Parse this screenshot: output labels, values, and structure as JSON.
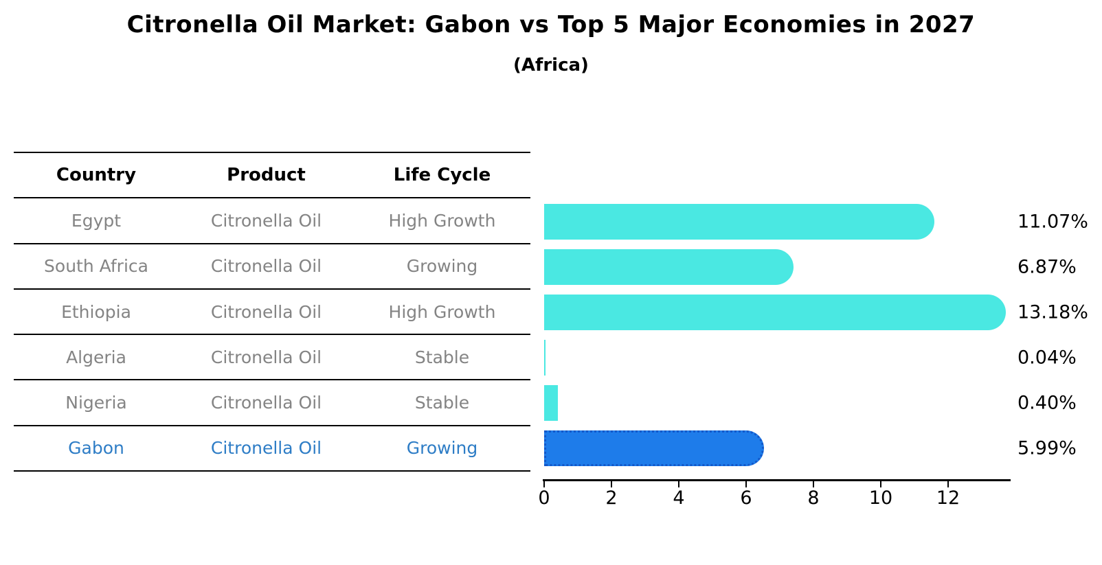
{
  "header": {
    "title": "Citronella Oil Market: Gabon vs Top 5 Major Economies in 2027",
    "subtitle": "(Africa)"
  },
  "table": {
    "headers": [
      "Country",
      "Product",
      "Life Cycle"
    ],
    "rows": [
      {
        "country": "Egypt",
        "product": "Citronella Oil",
        "life_cycle": "High Growth",
        "highlight": false
      },
      {
        "country": "South Africa",
        "product": "Citronella Oil",
        "life_cycle": "Growing",
        "highlight": false
      },
      {
        "country": "Ethiopia",
        "product": "Citronella Oil",
        "life_cycle": "High Growth",
        "highlight": false
      },
      {
        "country": "Algeria",
        "product": "Citronella Oil",
        "life_cycle": "Stable",
        "highlight": false
      },
      {
        "country": "Nigeria",
        "product": "Citronella Oil",
        "life_cycle": "Stable",
        "highlight": false
      },
      {
        "country": "Gabon",
        "product": "Citronella Oil",
        "life_cycle": "Growing",
        "highlight": true
      }
    ]
  },
  "chart_data": {
    "type": "bar",
    "orientation": "horizontal",
    "title": "Citronella Oil Market: Gabon vs Top 5 Major Economies in 2027",
    "subtitle": "(Africa)",
    "categories": [
      "Egypt",
      "South Africa",
      "Ethiopia",
      "Algeria",
      "Nigeria",
      "Gabon"
    ],
    "values": [
      11.07,
      6.87,
      13.18,
      0.04,
      0.4,
      5.99
    ],
    "value_labels": [
      "11.07%",
      "6.87%",
      "13.18%",
      "0.04%",
      "0.40%",
      "5.99%"
    ],
    "x_ticks": [
      "0",
      "2",
      "4",
      "6",
      "8",
      "10",
      "12"
    ],
    "x_tick_values": [
      0,
      2,
      4,
      6,
      8,
      10,
      12
    ],
    "xlim": [
      0,
      13.8
    ],
    "xlabel": "",
    "ylabel": "",
    "grid": false,
    "legend": "none",
    "highlight_category": "Gabon",
    "colors": {
      "bar": "#4AE8E2",
      "highlight_bar": "#1E7CEA",
      "highlight_border": "#1358C9",
      "highlight_text": "#2E7DC6",
      "table_text": "#848484",
      "text": "#000000"
    }
  }
}
